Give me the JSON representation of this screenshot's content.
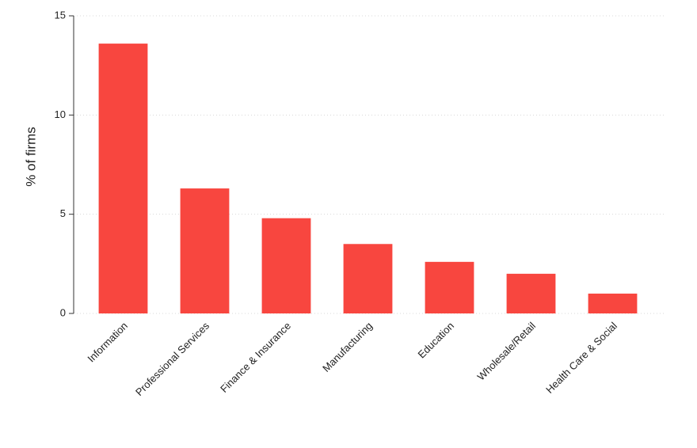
{
  "chart_data": {
    "type": "bar",
    "y_label": "% of firms",
    "categories": [
      "Information",
      "Professional Services",
      "Finance & Insurance",
      "Manufacturing",
      "Education",
      "Wholesale/Retail",
      "Health Care & Social"
    ],
    "values": [
      13.6,
      6.3,
      4.8,
      3.5,
      2.6,
      2.0,
      1.0
    ],
    "color": "#f8463f",
    "ylim": [
      0,
      15
    ],
    "yticks": [
      0,
      5,
      10,
      15
    ],
    "grid": true
  }
}
